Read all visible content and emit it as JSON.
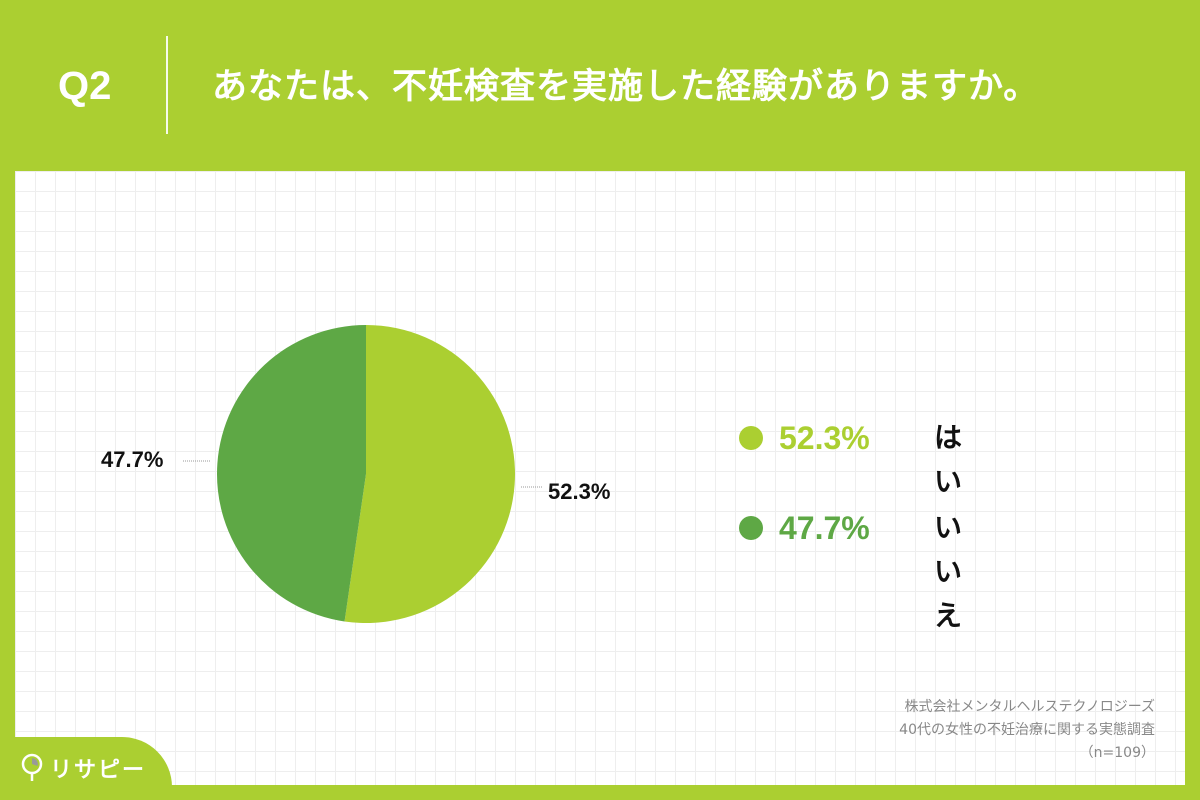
{
  "header": {
    "question_number": "Q2",
    "question_text": "あなたは、不妊検査を実施した経験がありますか。"
  },
  "colors": {
    "brand": "#abcf31",
    "yes": "#abcf31",
    "no": "#5ea845",
    "panel": "#ffffff"
  },
  "chart_data": {
    "type": "pie",
    "title": "あなたは、不妊検査を実施した経験がありますか。",
    "categories": [
      "はい",
      "いいえ"
    ],
    "values": [
      52.3,
      47.7
    ],
    "unit": "%",
    "colors": [
      "#abcf31",
      "#5ea845"
    ],
    "start_angle": "12 o'clock, clockwise",
    "data_labels": [
      "52.3%",
      "47.7%"
    ],
    "legend_position": "right",
    "n": 109
  },
  "callouts": {
    "yes": "52.3%",
    "no": "47.7%"
  },
  "legend": {
    "items": [
      {
        "pct": "52.3%",
        "label": "はい",
        "color": "#abcf31"
      },
      {
        "pct": "47.7%",
        "label": "いいえ",
        "color": "#5ea845"
      }
    ]
  },
  "source": {
    "line1": "株式会社メンタルヘルステクノロジーズ",
    "line2": "40代の女性の不妊治療に関する実態調査",
    "line3": "（n=109）"
  },
  "logo": {
    "text": "リサピー"
  }
}
